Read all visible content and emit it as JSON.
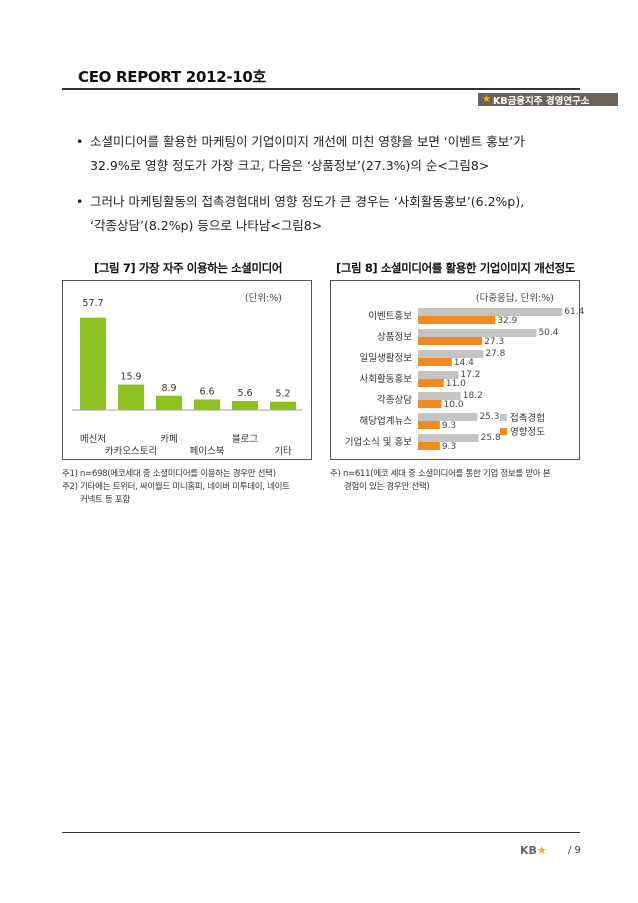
{
  "header": {
    "report_title": "CEO REPORT 2012-10호",
    "logo_text": "KB금융지주 경영연구소"
  },
  "body": {
    "bullet1_line1": "소셜미디어를 활용한 마케팅이 기업이미지 개선에 미친 영향을 보면 ‘이벤트 홍보’가",
    "bullet1_line2": "32.9%로 영향 정도가 가장 크고, 다음은 ‘상품정보’(27.3%)의 순<그림8>",
    "bullet2_line1": "그러나 마케팅활동의 접촉경험대비 영향 정도가 큰 경우는 ‘사회활동홍보’(6.2%p),",
    "bullet2_line2": "‘각종상담’(8.2%p) 등으로 나타남<그림8>"
  },
  "figure7": {
    "title": "[그림 7] 가장 자주 이용하는 소셜미디어",
    "unit": "(단위:%)",
    "note1": "주1) n=698(에코세대 중 소셜미디어를 이용하는 경우만 선택)",
    "note2_line1": "주2) 기타에는 트위터, 싸이월드 미니홈피, 네이버 미투데이, 네이트",
    "note2_line2": "커넥트 등 포함"
  },
  "figure8": {
    "title": "[그림 8] 소셜미디어를 활용한 기업이미지 개선정도",
    "unit": "(다중응답, 단위:%)",
    "note_line1": "주) n=611(에코 세대 중 소셜미디어를 통한 기업 정보를 받아 본",
    "note_line2": "경험이 있는 경우만 선택)"
  },
  "footer": {
    "logo_text": "KB",
    "page_number": "/ 9"
  },
  "colors": {
    "green": "#8cc21f",
    "gray": "#c4c4c4",
    "orange": "#f28a1e"
  },
  "chart_data": [
    {
      "type": "bar",
      "title": "[그림 7] 가장 자주 이용하는 소셜미디어",
      "unit": "(단위:%)",
      "categories": [
        "메신저",
        "카카오스토리",
        "카페",
        "페이스북",
        "블로그",
        "기타"
      ],
      "values": [
        57.7,
        15.9,
        8.9,
        6.6,
        5.6,
        5.2
      ],
      "value_labels": [
        "57.7",
        "15.9",
        "8.9",
        "6.6",
        "5.6",
        "5.2"
      ],
      "ylim": [
        0,
        60
      ],
      "grid": false
    },
    {
      "type": "bar",
      "orientation": "horizontal",
      "title": "[그림 8] 소셜미디어를 활용한 기업이미지 개선정도",
      "unit": "(다중응답, 단위:%)",
      "categories": [
        "이벤트홍보",
        "상품정보",
        "일일생활정보",
        "사회활동홍보",
        "각종상담",
        "해당업계뉴스",
        "기업소식 및 홍보"
      ],
      "series": [
        {
          "name": "접촉경험",
          "values": [
            61.4,
            50.4,
            27.8,
            17.2,
            18.2,
            25.3,
            25.8
          ],
          "labels": [
            "61.4",
            "50.4",
            "27.8",
            "17.2",
            "18.2",
            "25.3",
            "25.8"
          ]
        },
        {
          "name": "영향정도",
          "values": [
            32.9,
            27.3,
            14.4,
            11.0,
            10.0,
            9.3,
            9.3
          ],
          "labels": [
            "32.9",
            "27.3",
            "14.4",
            "11.0",
            "10.0",
            "9.3",
            "9.3"
          ]
        }
      ],
      "xlim": [
        0,
        65
      ],
      "legend": "right",
      "grid": false
    }
  ]
}
